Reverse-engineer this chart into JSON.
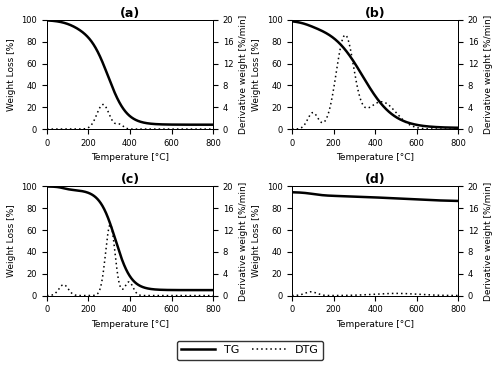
{
  "panels": [
    "(a)",
    "(b)",
    "(c)",
    "(d)"
  ],
  "xlabel": "Temperature [°C]",
  "ylabel_left": "Weight Loss [%]",
  "ylabel_right": "Derivative weight [%/min]",
  "xlim": [
    0,
    800
  ],
  "ylim_left": [
    0,
    100
  ],
  "ylim_right": [
    0,
    20
  ],
  "xticks": [
    0,
    200,
    400,
    600,
    800
  ],
  "yticks_left": [
    0,
    20,
    40,
    60,
    80,
    100
  ],
  "yticks_right": [
    0,
    4,
    8,
    12,
    16,
    20
  ],
  "legend_labels": [
    "TG",
    "DTG"
  ],
  "tg_lw": 1.8,
  "dtg_lw": 1.1,
  "background": "#ffffff",
  "title_fontsize": 9,
  "label_fontsize": 6.5,
  "tick_fontsize": 6
}
